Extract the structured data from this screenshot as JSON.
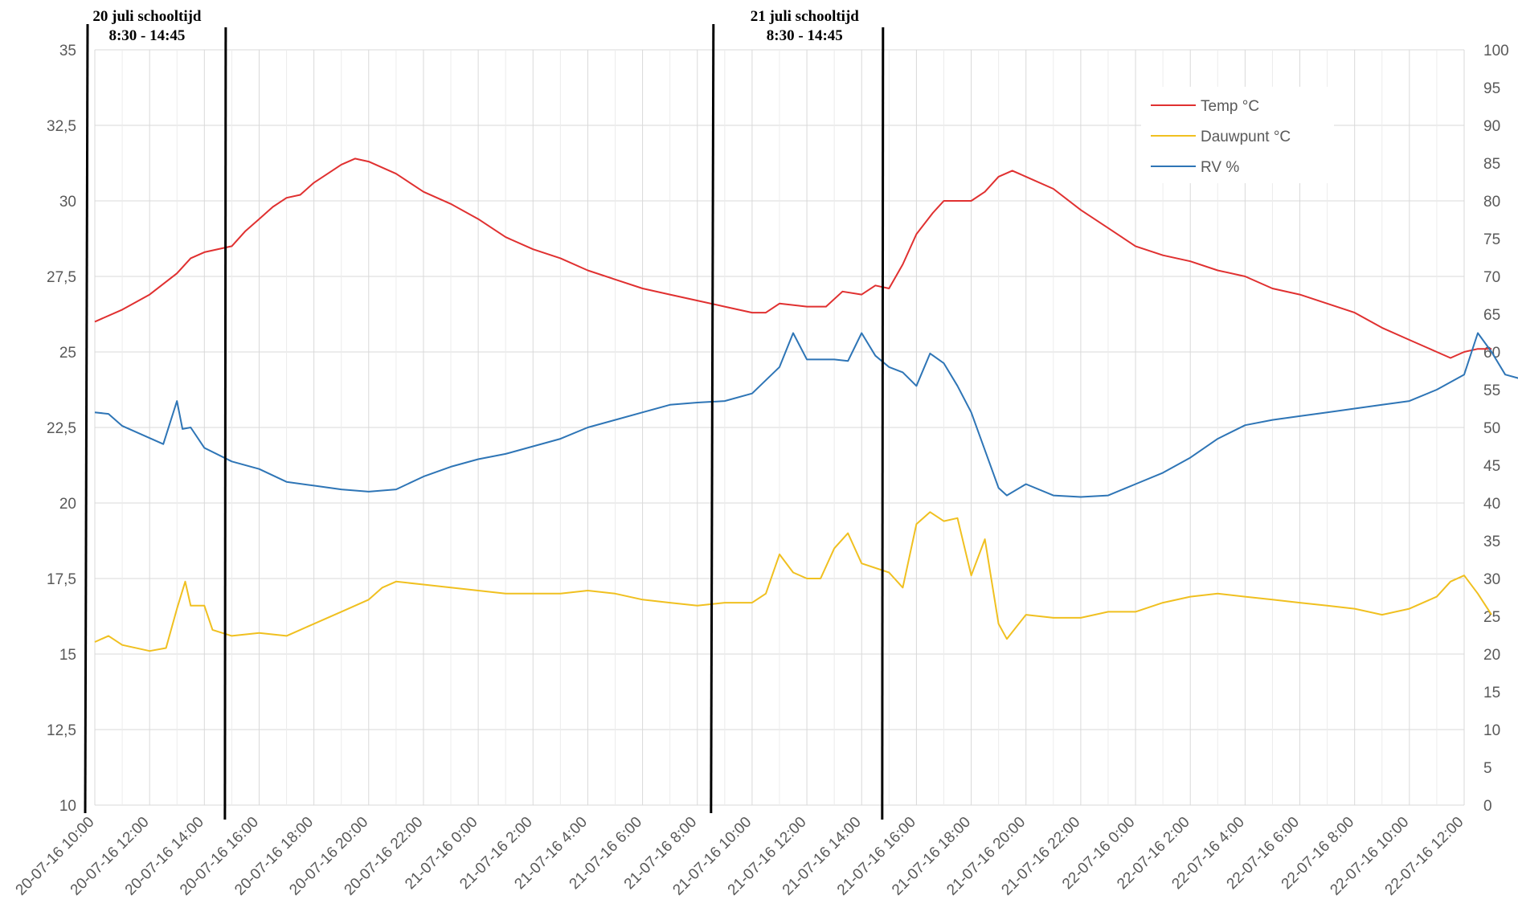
{
  "chart_data": {
    "type": "line",
    "title": "",
    "x_categories": [
      "20-07-16 10:00",
      "20-07-16 12:00",
      "20-07-16 14:00",
      "20-07-16 16:00",
      "20-07-16 18:00",
      "20-07-16 20:00",
      "20-07-16 22:00",
      "21-07-16 0:00",
      "21-07-16 2:00",
      "21-07-16 4:00",
      "21-07-16 6:00",
      "21-07-16 8:00",
      "21-07-16 10:00",
      "21-07-16 12:00",
      "21-07-16 14:00",
      "21-07-16 16:00",
      "21-07-16 18:00",
      "21-07-16 20:00",
      "21-07-16 22:00",
      "22-07-16 0:00",
      "22-07-16 2:00",
      "22-07-16 4:00",
      "22-07-16 6:00",
      "22-07-16 8:00",
      "22-07-16 10:00",
      "22-07-16 12:00"
    ],
    "x_unit": "hours since 20-07-16 10:00",
    "y_left": {
      "min": 10,
      "max": 35,
      "ticks": [
        "10",
        "12,5",
        "15",
        "17,5",
        "20",
        "22,5",
        "25",
        "27,5",
        "30",
        "32,5",
        "35"
      ]
    },
    "y_right": {
      "min": 0,
      "max": 100,
      "ticks": [
        "0",
        "5",
        "10",
        "15",
        "20",
        "25",
        "30",
        "35",
        "40",
        "45",
        "50",
        "55",
        "60",
        "65",
        "70",
        "75",
        "80",
        "85",
        "90",
        "95",
        "100"
      ]
    },
    "grid": true,
    "legend_position": "top-right",
    "series": [
      {
        "name": "Temp °C",
        "axis": "left",
        "color": "#e03030",
        "points": [
          [
            0,
            26.0
          ],
          [
            1,
            26.4
          ],
          [
            2,
            26.9
          ],
          [
            3,
            27.6
          ],
          [
            3.5,
            28.1
          ],
          [
            4,
            28.3
          ],
          [
            5,
            28.5
          ],
          [
            5.5,
            29.0
          ],
          [
            6,
            29.4
          ],
          [
            6.5,
            29.8
          ],
          [
            7,
            30.1
          ],
          [
            7.5,
            30.2
          ],
          [
            8,
            30.6
          ],
          [
            8.5,
            30.9
          ],
          [
            9,
            31.2
          ],
          [
            9.5,
            31.4
          ],
          [
            10,
            31.3
          ],
          [
            11,
            30.9
          ],
          [
            12,
            30.3
          ],
          [
            13,
            29.9
          ],
          [
            14,
            29.4
          ],
          [
            15,
            28.8
          ],
          [
            16,
            28.4
          ],
          [
            17,
            28.1
          ],
          [
            18,
            27.7
          ],
          [
            19,
            27.4
          ],
          [
            20,
            27.1
          ],
          [
            21,
            26.9
          ],
          [
            22,
            26.7
          ],
          [
            23,
            26.5
          ],
          [
            24,
            26.3
          ],
          [
            24.5,
            26.3
          ],
          [
            25,
            26.6
          ],
          [
            26,
            26.5
          ],
          [
            26.7,
            26.5
          ],
          [
            27.3,
            27.0
          ],
          [
            28,
            26.9
          ],
          [
            28.5,
            27.2
          ],
          [
            29,
            27.1
          ],
          [
            29.5,
            27.9
          ],
          [
            30,
            28.9
          ],
          [
            30.6,
            29.6
          ],
          [
            31,
            30.0
          ],
          [
            32,
            30.0
          ],
          [
            32.5,
            30.3
          ],
          [
            33,
            30.8
          ],
          [
            33.5,
            31.0
          ],
          [
            34,
            30.8
          ],
          [
            35,
            30.4
          ],
          [
            36,
            29.7
          ],
          [
            37,
            29.1
          ],
          [
            38,
            28.5
          ],
          [
            39,
            28.2
          ],
          [
            40,
            28.0
          ],
          [
            41,
            27.7
          ],
          [
            42,
            27.5
          ],
          [
            43,
            27.1
          ],
          [
            44,
            26.9
          ],
          [
            45,
            26.6
          ],
          [
            46,
            26.3
          ],
          [
            47,
            25.8
          ],
          [
            48,
            25.4
          ],
          [
            49,
            25.0
          ],
          [
            49.5,
            24.8
          ],
          [
            50,
            25.0
          ],
          [
            50.5,
            25.1
          ],
          [
            51,
            25.1
          ]
        ]
      },
      {
        "name": "Dauwpunt °C",
        "axis": "left",
        "color": "#f0c020",
        "points": [
          [
            0,
            15.4
          ],
          [
            0.5,
            15.6
          ],
          [
            1,
            15.3
          ],
          [
            2,
            15.1
          ],
          [
            2.6,
            15.2
          ],
          [
            3,
            16.5
          ],
          [
            3.3,
            17.4
          ],
          [
            3.5,
            16.6
          ],
          [
            4,
            16.6
          ],
          [
            4.3,
            15.8
          ],
          [
            5,
            15.6
          ],
          [
            6,
            15.7
          ],
          [
            7,
            15.6
          ],
          [
            7.5,
            15.8
          ],
          [
            8,
            16.0
          ],
          [
            9,
            16.4
          ],
          [
            10,
            16.8
          ],
          [
            10.5,
            17.2
          ],
          [
            11,
            17.4
          ],
          [
            12,
            17.3
          ],
          [
            13,
            17.2
          ],
          [
            14,
            17.1
          ],
          [
            15,
            17.0
          ],
          [
            16,
            17.0
          ],
          [
            17,
            17.0
          ],
          [
            18,
            17.1
          ],
          [
            19,
            17.0
          ],
          [
            20,
            16.8
          ],
          [
            21,
            16.7
          ],
          [
            22,
            16.6
          ],
          [
            23,
            16.7
          ],
          [
            24,
            16.7
          ],
          [
            24.5,
            17.0
          ],
          [
            25,
            18.3
          ],
          [
            25.5,
            17.7
          ],
          [
            26,
            17.5
          ],
          [
            26.5,
            17.5
          ],
          [
            27,
            18.5
          ],
          [
            27.5,
            19.0
          ],
          [
            28,
            18.0
          ],
          [
            29,
            17.7
          ],
          [
            29.5,
            17.2
          ],
          [
            30,
            19.3
          ],
          [
            30.5,
            19.7
          ],
          [
            31,
            19.4
          ],
          [
            31.5,
            19.5
          ],
          [
            32,
            17.6
          ],
          [
            32.5,
            18.8
          ],
          [
            33,
            16.0
          ],
          [
            33.3,
            15.5
          ],
          [
            34,
            16.3
          ],
          [
            35,
            16.2
          ],
          [
            36,
            16.2
          ],
          [
            37,
            16.4
          ],
          [
            38,
            16.4
          ],
          [
            39,
            16.7
          ],
          [
            40,
            16.9
          ],
          [
            41,
            17.0
          ],
          [
            42,
            16.9
          ],
          [
            43,
            16.8
          ],
          [
            44,
            16.7
          ],
          [
            45,
            16.6
          ],
          [
            46,
            16.5
          ],
          [
            47,
            16.3
          ],
          [
            48,
            16.5
          ],
          [
            49,
            16.9
          ],
          [
            49.5,
            17.4
          ],
          [
            50,
            17.6
          ],
          [
            50.5,
            17.0
          ],
          [
            51,
            16.3
          ]
        ]
      },
      {
        "name": "RV %",
        "axis": "right",
        "color": "#2e75b6",
        "points": [
          [
            0,
            52.0
          ],
          [
            0.5,
            51.8
          ],
          [
            1,
            50.2
          ],
          [
            2,
            48.6
          ],
          [
            2.5,
            47.8
          ],
          [
            3,
            53.5
          ],
          [
            3.2,
            49.8
          ],
          [
            3.5,
            50.0
          ],
          [
            4,
            47.3
          ],
          [
            5,
            45.5
          ],
          [
            6,
            44.5
          ],
          [
            7,
            42.8
          ],
          [
            8,
            42.3
          ],
          [
            9,
            41.8
          ],
          [
            10,
            41.5
          ],
          [
            11,
            41.8
          ],
          [
            12,
            43.5
          ],
          [
            13,
            44.8
          ],
          [
            14,
            45.8
          ],
          [
            15,
            46.5
          ],
          [
            16,
            47.5
          ],
          [
            17,
            48.5
          ],
          [
            18,
            50.0
          ],
          [
            19,
            51.0
          ],
          [
            20,
            52.0
          ],
          [
            21,
            53.0
          ],
          [
            22,
            53.3
          ],
          [
            23,
            53.5
          ],
          [
            24,
            54.5
          ],
          [
            25,
            58.0
          ],
          [
            25.5,
            62.5
          ],
          [
            26,
            59.0
          ],
          [
            27,
            59.0
          ],
          [
            27.5,
            58.8
          ],
          [
            28,
            62.5
          ],
          [
            28.5,
            59.5
          ],
          [
            29,
            58.0
          ],
          [
            29.5,
            57.3
          ],
          [
            30,
            55.5
          ],
          [
            30.5,
            59.8
          ],
          [
            31,
            58.5
          ],
          [
            31.5,
            55.5
          ],
          [
            32,
            52.0
          ],
          [
            32.5,
            47.0
          ],
          [
            33,
            42.0
          ],
          [
            33.3,
            41.0
          ],
          [
            34,
            42.5
          ],
          [
            35,
            41.0
          ],
          [
            36,
            40.8
          ],
          [
            37,
            41.0
          ],
          [
            38,
            42.5
          ],
          [
            39,
            44.0
          ],
          [
            40,
            46.0
          ],
          [
            41,
            48.5
          ],
          [
            42,
            50.3
          ],
          [
            43,
            51.0
          ],
          [
            44,
            51.5
          ],
          [
            45,
            52.0
          ],
          [
            46,
            52.5
          ],
          [
            47,
            53.0
          ],
          [
            48,
            53.5
          ],
          [
            49,
            55.0
          ],
          [
            50,
            57.0
          ],
          [
            50.5,
            62.5
          ],
          [
            51,
            60.0
          ],
          [
            51.5,
            57.0
          ],
          [
            52,
            56.5
          ]
        ]
      }
    ],
    "annotations": [
      {
        "lines": [
          "20 juli schooltijd",
          "8:30 - 14:45"
        ],
        "start_hours": -1.5,
        "end_hours": 4.75
      },
      {
        "lines": [
          "21 juli schooltijd",
          "8:30 - 14:45"
        ],
        "start_hours": 22.5,
        "end_hours": 28.75
      }
    ]
  }
}
